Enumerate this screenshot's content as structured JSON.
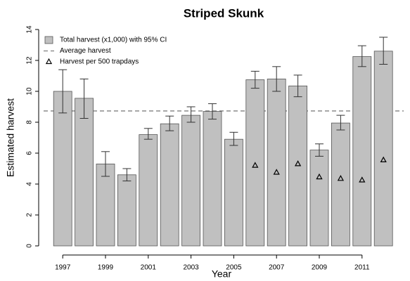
{
  "chart_data": {
    "type": "bar",
    "title": "Striped Skunk",
    "x_label": "Year",
    "y_label": "Estimated harvest",
    "categories": [
      "1997",
      null,
      "1999",
      null,
      "2001",
      null,
      "2003",
      null,
      "2005",
      null,
      "2007",
      null,
      "2009",
      null,
      "2011",
      null
    ],
    "series": [
      {
        "name": "Total harvest (x1,000) with 95% CI",
        "type": "bar",
        "color": "#c0c0c0",
        "values": [
          10.0,
          9.55,
          5.3,
          4.6,
          7.2,
          7.9,
          8.45,
          8.7,
          6.9,
          10.75,
          10.8,
          10.35,
          6.2,
          7.95,
          12.25,
          12.6
        ],
        "ci_lower": [
          8.6,
          8.25,
          4.5,
          4.2,
          6.9,
          7.45,
          8.0,
          8.2,
          6.5,
          10.2,
          10.0,
          9.65,
          5.8,
          7.5,
          11.6,
          11.75
        ],
        "ci_upper": [
          11.4,
          10.8,
          6.1,
          5.0,
          7.6,
          8.4,
          9.0,
          9.2,
          7.35,
          11.3,
          11.6,
          11.05,
          6.6,
          8.45,
          12.95,
          13.5
        ]
      },
      {
        "name": "Harvest per 500 trapdays",
        "type": "scatter",
        "marker": "triangle",
        "color": "#000000",
        "values": [
          null,
          null,
          null,
          null,
          null,
          null,
          null,
          null,
          null,
          5.2,
          4.75,
          5.3,
          4.45,
          4.35,
          4.25,
          5.55
        ]
      }
    ],
    "reference_lines": [
      {
        "name": "Average harvest",
        "value": 8.73,
        "color": "#808080",
        "style": "dashed"
      }
    ],
    "ylim": [
      0,
      14
    ],
    "yticks": [
      0,
      2,
      4,
      6,
      8,
      10,
      12,
      14
    ],
    "legend": "top-left"
  }
}
